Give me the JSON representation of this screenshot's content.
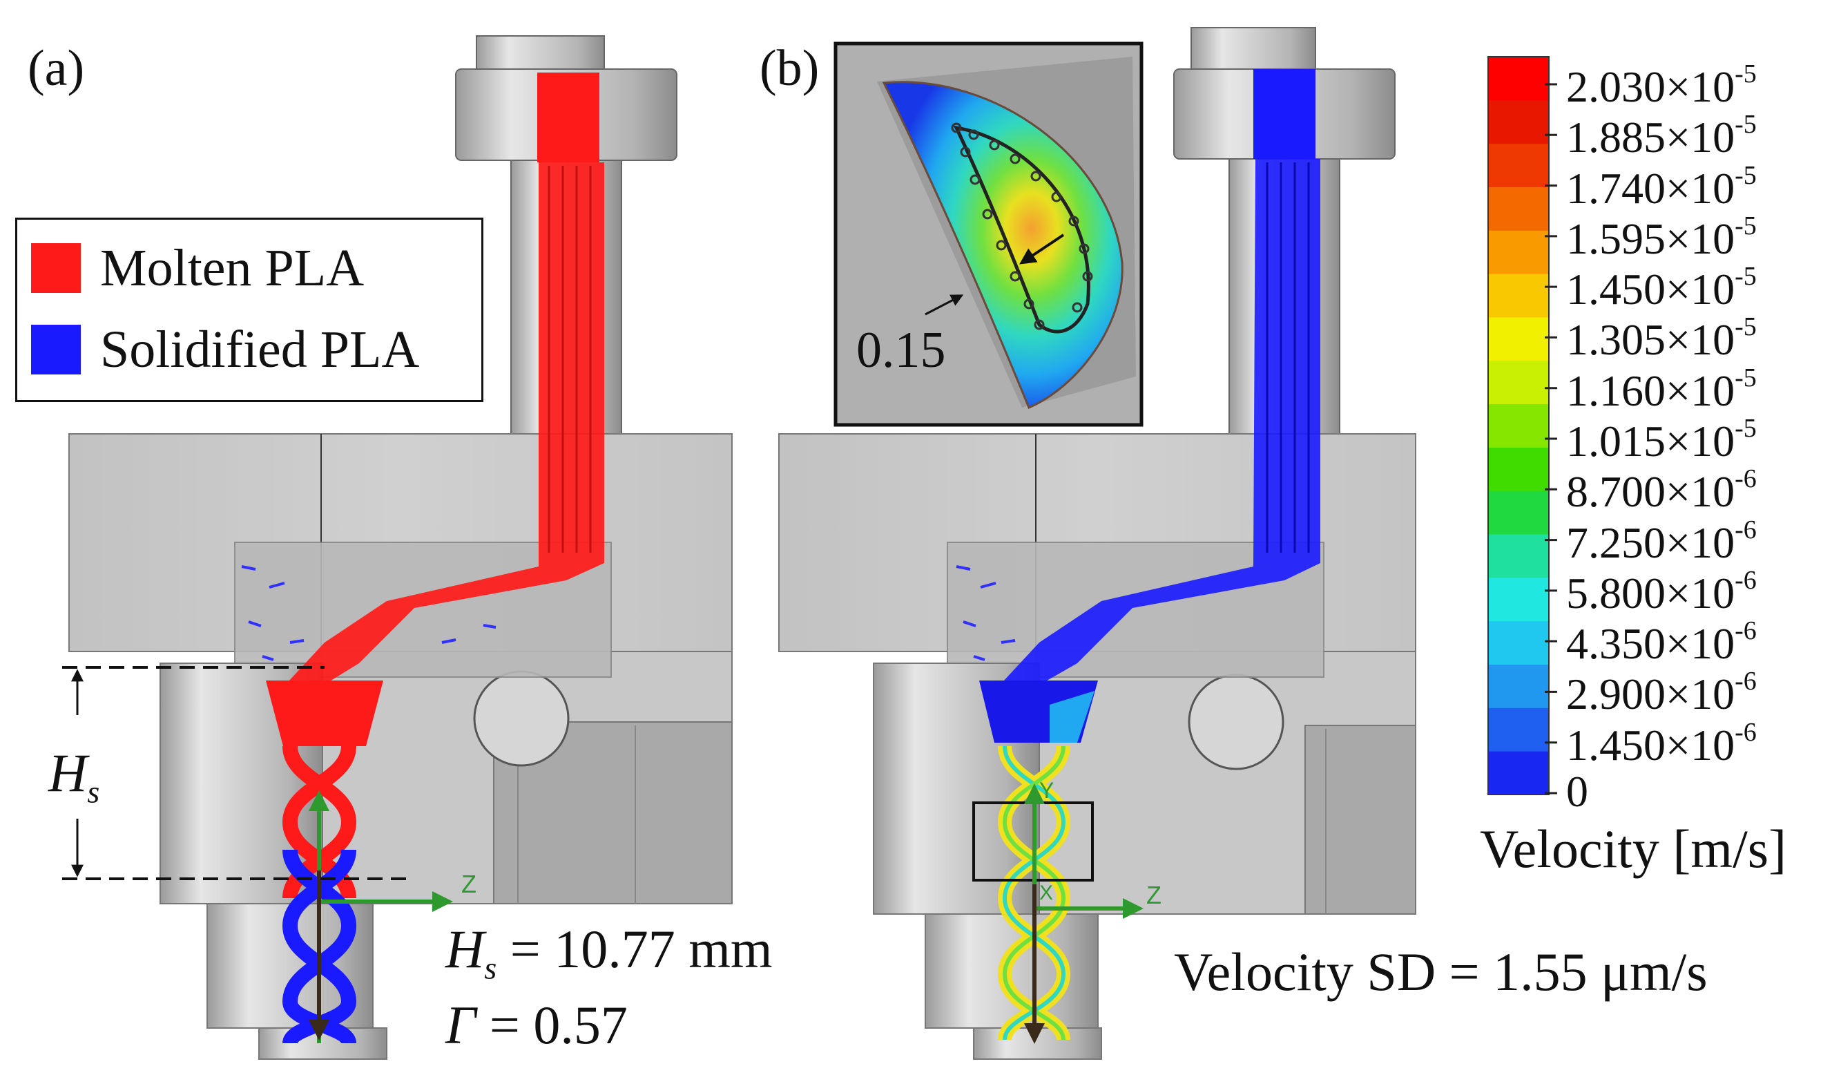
{
  "panels": {
    "a": {
      "label": "(a)"
    },
    "b": {
      "label": "(b)"
    }
  },
  "legend": {
    "items": [
      {
        "label": "Molten PLA",
        "color": "#ff1a1a"
      },
      {
        "label": "Solidified PLA",
        "color": "#1a1aff"
      }
    ]
  },
  "annotations": {
    "hs_label": "H",
    "hs_sub": "s",
    "hs_value": " = 10.77 mm",
    "gamma_symbol": "Γ",
    "gamma_value": " = 0.57",
    "velocity_sd": "Velocity SD = 1.55 μm/s",
    "inset_value": "0.15",
    "axis_z": "Z",
    "axis_y": "Y",
    "axis_x": "X"
  },
  "colorbar": {
    "title": "Velocity [m/s]",
    "colors": [
      "#ff0000",
      "#e81800",
      "#ee3a00",
      "#f46a00",
      "#f89a00",
      "#f8c800",
      "#f0f000",
      "#c8f000",
      "#86e600",
      "#40dc00",
      "#20d840",
      "#20e0a0",
      "#20e8e0",
      "#20c8f0",
      "#2098f0",
      "#2060f0",
      "#1828f0"
    ],
    "ticks": [
      {
        "mant": "2.030×10",
        "exp": "-5"
      },
      {
        "mant": "1.885×10",
        "exp": "-5"
      },
      {
        "mant": "1.740×10",
        "exp": "-5"
      },
      {
        "mant": "1.595×10",
        "exp": "-5"
      },
      {
        "mant": "1.450×10",
        "exp": "-5"
      },
      {
        "mant": "1.305×10",
        "exp": "-5"
      },
      {
        "mant": "1.160×10",
        "exp": "-5"
      },
      {
        "mant": "1.015×10",
        "exp": "-5"
      },
      {
        "mant": "8.700×10",
        "exp": "-6"
      },
      {
        "mant": "7.250×10",
        "exp": "-6"
      },
      {
        "mant": "5.800×10",
        "exp": "-6"
      },
      {
        "mant": "4.350×10",
        "exp": "-6"
      },
      {
        "mant": "2.900×10",
        "exp": "-6"
      },
      {
        "mant": "1.450×10",
        "exp": "-6"
      },
      {
        "mant": "0",
        "exp": ""
      }
    ]
  }
}
